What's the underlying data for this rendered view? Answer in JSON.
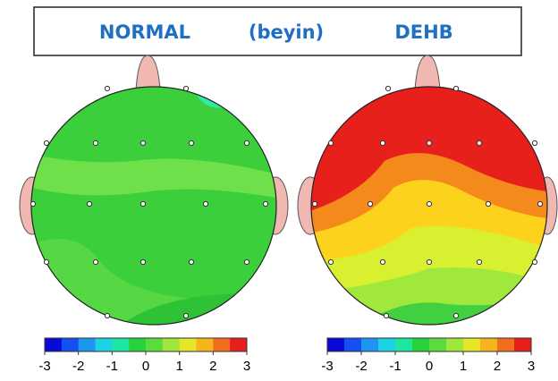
{
  "header": {
    "left": "NORMAL",
    "middle": "(beyin)",
    "right": "DEHB"
  },
  "maps": [
    {
      "colorbar": {
        "clim": [
          -3,
          3
        ],
        "ticks": [
          -3,
          -2,
          -1,
          0,
          1,
          2,
          3
        ]
      }
    },
    {
      "colorbar": {
        "clim": [
          -3,
          3
        ],
        "ticks": [
          -3,
          -2,
          -1,
          0,
          1,
          2,
          3
        ]
      }
    }
  ]
}
